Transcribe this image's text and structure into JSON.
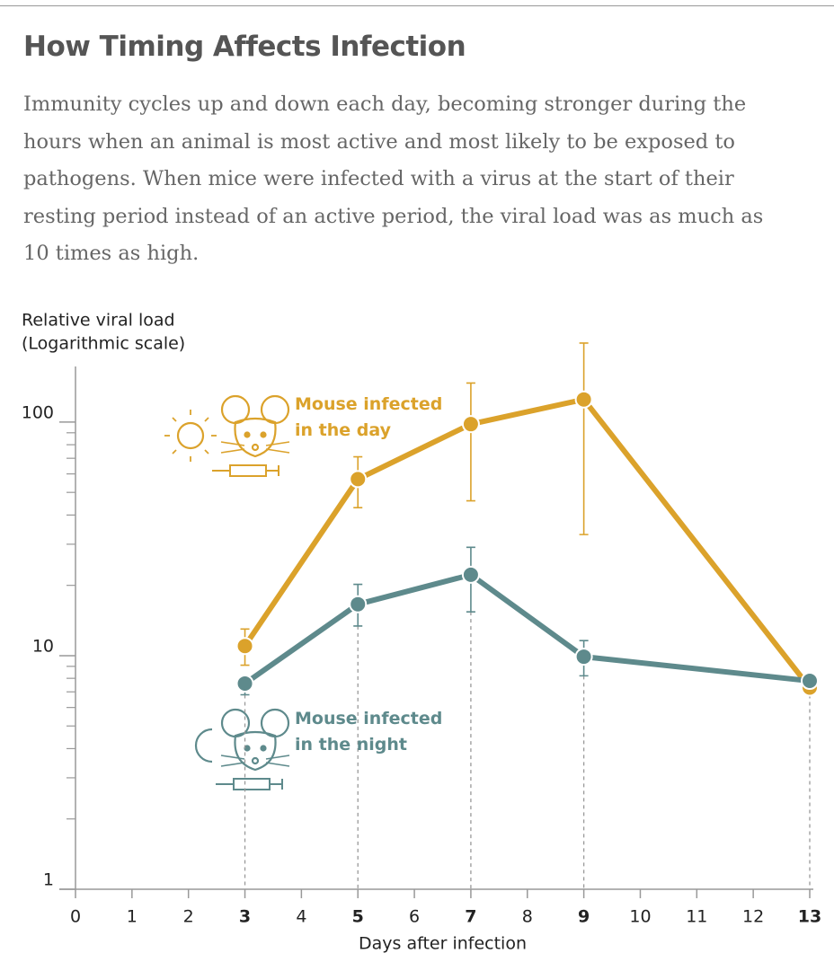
{
  "chart_data": {
    "type": "line",
    "title": "How Timing Affects Infection",
    "subtitle": "Immunity cycles up and down each day, becoming stronger during the hours when an animal is most active and most likely to be exposed to pathogens. When mice were infected with a virus at the start of their resting period instead of an active period, the viral load was as much as 10 times as high.",
    "y_label_lines": [
      "Relative viral load",
      "(Logarithmic scale)"
    ],
    "x_label": "Days after infection",
    "x": [
      3,
      5,
      7,
      9,
      13
    ],
    "series": [
      {
        "name": "Mouse infected in the day",
        "color": "#dba22b",
        "values": [
          11,
          57,
          98,
          125,
          7.3
        ],
        "lower": [
          9.1,
          43,
          46,
          33,
          null
        ],
        "upper": [
          13,
          71,
          147,
          218,
          null
        ]
      },
      {
        "name": "Mouse infected in the night",
        "color": "#5e8a8c",
        "values": [
          7.6,
          16.6,
          22.2,
          9.9,
          7.8
        ],
        "lower": [
          6.8,
          13.4,
          15.4,
          8.2,
          null
        ],
        "upper": [
          7.7,
          20.2,
          29.1,
          11.6,
          null
        ]
      }
    ],
    "xlim": [
      0,
      13
    ],
    "xticks": [
      0,
      1,
      2,
      3,
      4,
      5,
      6,
      7,
      8,
      9,
      10,
      11,
      12,
      13
    ],
    "ylim": [
      1,
      173
    ],
    "yticks": [
      1,
      10,
      100
    ],
    "yticks_minor": [
      2,
      3,
      4,
      5,
      6,
      7,
      8,
      9,
      20,
      30,
      40,
      50,
      60,
      70,
      80,
      90
    ],
    "log_y": true
  }
}
